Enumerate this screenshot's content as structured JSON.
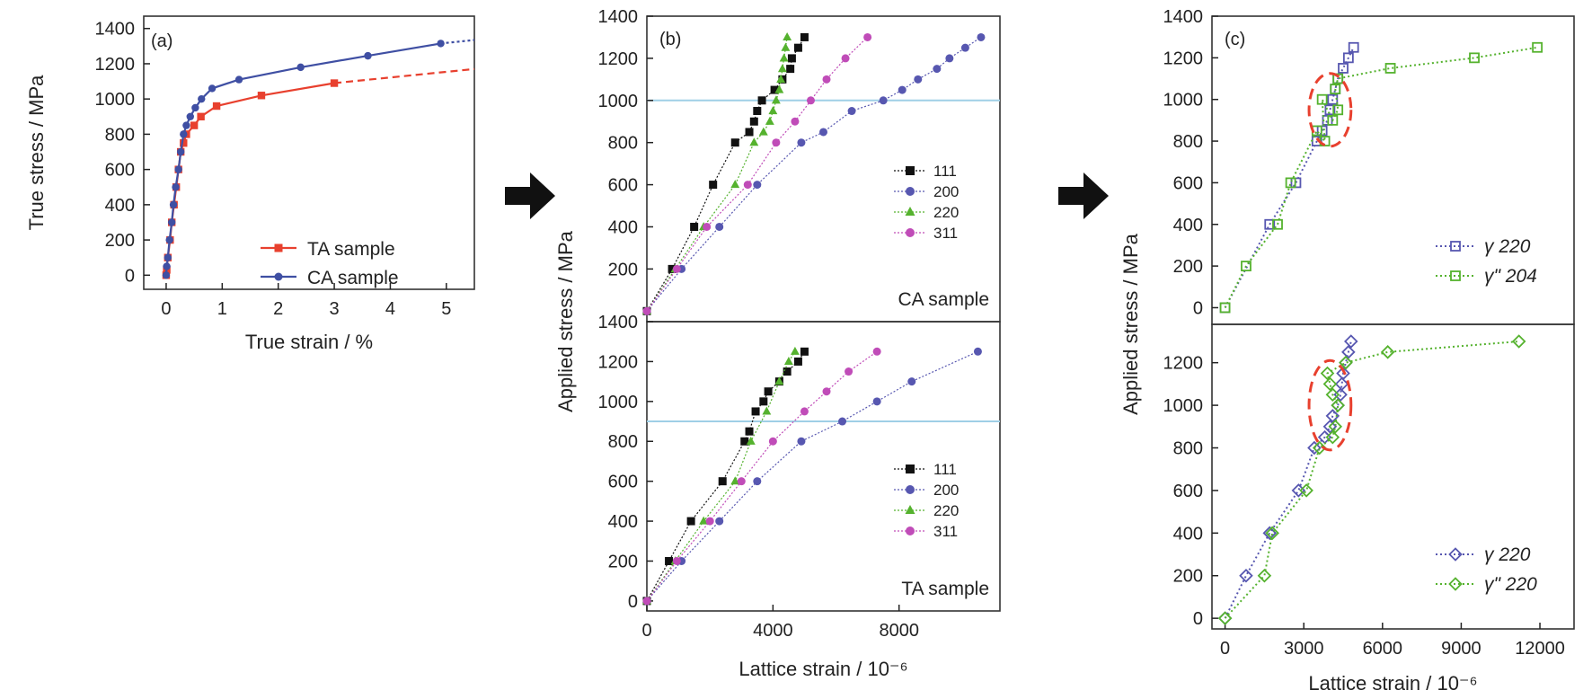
{
  "colors": {
    "black": "#111111",
    "blue": "#5757b0",
    "green": "#55b22e",
    "magenta": "#c04cb8",
    "red": "#e8402e",
    "ca_blue": "#3f4fa3",
    "hline": "#9fcfe6",
    "arrow": "#111111"
  },
  "chart_data": [
    {
      "id": "a",
      "type": "line",
      "panel_label": "(a)",
      "xlabel": "True strain / %",
      "ylabel": "True stress / MPa",
      "xlim": [
        -0.4,
        5.5
      ],
      "ylim": [
        -80,
        1470
      ],
      "xticks": [
        "0",
        "1",
        "2",
        "3",
        "4",
        "5"
      ],
      "yticks": [
        "0",
        "200",
        "400",
        "600",
        "800",
        "1000",
        "1200",
        "1400"
      ],
      "legend_position": "bottom-right",
      "series": [
        {
          "name": "TA sample",
          "color_key": "red",
          "marker": "square",
          "points": [
            [
              0,
              0
            ],
            [
              0.01,
              30
            ],
            [
              0.03,
              100
            ],
            [
              0.07,
              200
            ],
            [
              0.1,
              300
            ],
            [
              0.14,
              400
            ],
            [
              0.18,
              500
            ],
            [
              0.22,
              600
            ],
            [
              0.26,
              700
            ],
            [
              0.31,
              750
            ],
            [
              0.36,
              800
            ],
            [
              0.5,
              850
            ],
            [
              0.62,
              900
            ],
            [
              0.9,
              960
            ],
            [
              1.7,
              1020
            ],
            [
              3.0,
              1090
            ]
          ],
          "extrapolation": [
            [
              3.0,
              1090
            ],
            [
              5.5,
              1170
            ]
          ]
        },
        {
          "name": "CA sample",
          "color_key": "ca_blue",
          "marker": "circle",
          "points": [
            [
              0,
              0
            ],
            [
              0.01,
              50
            ],
            [
              0.03,
              100
            ],
            [
              0.06,
              200
            ],
            [
              0.1,
              300
            ],
            [
              0.13,
              400
            ],
            [
              0.17,
              500
            ],
            [
              0.22,
              600
            ],
            [
              0.26,
              700
            ],
            [
              0.31,
              800
            ],
            [
              0.36,
              850
            ],
            [
              0.43,
              900
            ],
            [
              0.52,
              950
            ],
            [
              0.63,
              1000
            ],
            [
              0.82,
              1060
            ],
            [
              1.3,
              1110
            ],
            [
              2.4,
              1180
            ],
            [
              3.6,
              1245
            ],
            [
              4.9,
              1315
            ]
          ],
          "extrapolation": [
            [
              4.9,
              1315
            ],
            [
              5.5,
              1335
            ]
          ]
        }
      ]
    },
    {
      "id": "b_top",
      "type": "line",
      "panel_label": "(b)",
      "sample_label": "CA sample",
      "xlim": [
        0,
        11200
      ],
      "ylim": [
        -50,
        1400
      ],
      "yticks": [
        "200",
        "400",
        "600",
        "800",
        "1000",
        "1200",
        "1400"
      ],
      "hline": 1000,
      "legend_position": "right",
      "series": [
        {
          "name": "111",
          "color_key": "black",
          "marker": "square",
          "points": [
            [
              0,
              0
            ],
            [
              800,
              200
            ],
            [
              1500,
              400
            ],
            [
              2100,
              600
            ],
            [
              2800,
              800
            ],
            [
              3250,
              850
            ],
            [
              3400,
              900
            ],
            [
              3500,
              950
            ],
            [
              3650,
              1000
            ],
            [
              4050,
              1050
            ],
            [
              4300,
              1100
            ],
            [
              4550,
              1150
            ],
            [
              4600,
              1200
            ],
            [
              4800,
              1250
            ],
            [
              5000,
              1300
            ]
          ]
        },
        {
          "name": "200",
          "color_key": "blue",
          "marker": "circle",
          "points": [
            [
              0,
              0
            ],
            [
              1100,
              200
            ],
            [
              2300,
              400
            ],
            [
              3500,
              600
            ],
            [
              4900,
              800
            ],
            [
              5600,
              850
            ],
            [
              6500,
              950
            ],
            [
              7500,
              1000
            ],
            [
              8100,
              1050
            ],
            [
              8600,
              1100
            ],
            [
              9200,
              1150
            ],
            [
              9600,
              1200
            ],
            [
              10100,
              1250
            ],
            [
              10600,
              1300
            ]
          ]
        },
        {
          "name": "220",
          "color_key": "green",
          "marker": "triangle",
          "points": [
            [
              0,
              0
            ],
            [
              900,
              200
            ],
            [
              1800,
              400
            ],
            [
              2800,
              600
            ],
            [
              3400,
              800
            ],
            [
              3700,
              850
            ],
            [
              3900,
              900
            ],
            [
              4000,
              950
            ],
            [
              4100,
              1000
            ],
            [
              4200,
              1050
            ],
            [
              4250,
              1100
            ],
            [
              4300,
              1150
            ],
            [
              4350,
              1200
            ],
            [
              4400,
              1250
            ],
            [
              4450,
              1300
            ]
          ]
        },
        {
          "name": "311",
          "color_key": "magenta",
          "marker": "circle",
          "points": [
            [
              0,
              0
            ],
            [
              950,
              200
            ],
            [
              1900,
              400
            ],
            [
              3200,
              600
            ],
            [
              4100,
              800
            ],
            [
              4700,
              900
            ],
            [
              5200,
              1000
            ],
            [
              5700,
              1100
            ],
            [
              6300,
              1200
            ],
            [
              7000,
              1300
            ]
          ]
        }
      ]
    },
    {
      "id": "b_bottom",
      "type": "line",
      "sample_label": "TA sample",
      "xlabel": "Lattice strain / 10⁻⁶",
      "ylabel": "Applied stress / MPa",
      "xlim": [
        0,
        11200
      ],
      "ylim": [
        -50,
        1400
      ],
      "xticks": [
        "0",
        "4000",
        "8000"
      ],
      "yticks": [
        "0",
        "200",
        "400",
        "600",
        "800",
        "1000",
        "1200",
        "1400"
      ],
      "hline": 900,
      "legend_position": "right",
      "series": [
        {
          "name": "111",
          "color_key": "black",
          "marker": "square",
          "points": [
            [
              0,
              0
            ],
            [
              700,
              200
            ],
            [
              1400,
              400
            ],
            [
              2400,
              600
            ],
            [
              3100,
              800
            ],
            [
              3250,
              850
            ],
            [
              3450,
              950
            ],
            [
              3700,
              1000
            ],
            [
              3850,
              1050
            ],
            [
              4200,
              1100
            ],
            [
              4450,
              1150
            ],
            [
              4800,
              1200
            ],
            [
              5000,
              1250
            ]
          ]
        },
        {
          "name": "200",
          "color_key": "blue",
          "marker": "circle",
          "points": [
            [
              0,
              0
            ],
            [
              1100,
              200
            ],
            [
              2300,
              400
            ],
            [
              3500,
              600
            ],
            [
              4900,
              800
            ],
            [
              6200,
              900
            ],
            [
              7300,
              1000
            ],
            [
              8400,
              1100
            ],
            [
              10500,
              1250
            ]
          ]
        },
        {
          "name": "220",
          "color_key": "green",
          "marker": "triangle",
          "points": [
            [
              0,
              0
            ],
            [
              900,
              200
            ],
            [
              1800,
              400
            ],
            [
              2800,
              600
            ],
            [
              3300,
              800
            ],
            [
              3800,
              950
            ],
            [
              4200,
              1100
            ],
            [
              4500,
              1200
            ],
            [
              4700,
              1250
            ]
          ]
        },
        {
          "name": "311",
          "color_key": "magenta",
          "marker": "circle",
          "points": [
            [
              0,
              0
            ],
            [
              950,
              200
            ],
            [
              2000,
              400
            ],
            [
              3000,
              600
            ],
            [
              4000,
              800
            ],
            [
              5000,
              950
            ],
            [
              5700,
              1050
            ],
            [
              6400,
              1150
            ],
            [
              7300,
              1250
            ]
          ]
        }
      ]
    },
    {
      "id": "c_top",
      "type": "line",
      "panel_label": "(c)",
      "xlim": [
        -500,
        13300
      ],
      "ylim": [
        -80,
        1400
      ],
      "yticks": [
        "0",
        "200",
        "400",
        "600",
        "800",
        "1000",
        "1200",
        "1400"
      ],
      "highlight_ellipse": {
        "x": 4000,
        "y": 950,
        "rx": 800,
        "ry": 175
      },
      "legend_position": "bottom-right",
      "series": [
        {
          "name": "γ 220",
          "color_key": "blue",
          "marker": "open-square",
          "points": [
            [
              0,
              0
            ],
            [
              1700,
              400
            ],
            [
              2700,
              600
            ],
            [
              3500,
              800
            ],
            [
              3700,
              850
            ],
            [
              3900,
              900
            ],
            [
              4000,
              950
            ],
            [
              4100,
              1000
            ],
            [
              4200,
              1050
            ],
            [
              4300,
              1100
            ],
            [
              4500,
              1150
            ],
            [
              4700,
              1200
            ],
            [
              4900,
              1250
            ]
          ]
        },
        {
          "name": "γʺ 204",
          "color_key": "green",
          "marker": "open-square",
          "points": [
            [
              0,
              0
            ],
            [
              800,
              200
            ],
            [
              2000,
              400
            ],
            [
              2500,
              600
            ],
            [
              3500,
              850
            ],
            [
              3800,
              800
            ],
            [
              3700,
              1000
            ],
            [
              4100,
              900
            ],
            [
              4300,
              950
            ],
            [
              4200,
              1050
            ],
            [
              4300,
              1100
            ],
            [
              6300,
              1150
            ],
            [
              9500,
              1200
            ],
            [
              11900,
              1250
            ]
          ]
        }
      ]
    },
    {
      "id": "c_bottom",
      "type": "line",
      "xlabel": "Lattice strain / 10⁻⁶",
      "ylabel": "Applied stress / MPa",
      "xlim": [
        -500,
        13300
      ],
      "ylim": [
        -50,
        1380
      ],
      "xticks": [
        "0",
        "3000",
        "6000",
        "9000",
        "12000"
      ],
      "yticks": [
        "0",
        "200",
        "400",
        "600",
        "800",
        "1000",
        "1200"
      ],
      "highlight_ellipse": {
        "x": 4000,
        "y": 1000,
        "rx": 800,
        "ry": 210
      },
      "legend_position": "bottom-right",
      "series": [
        {
          "name": "γ 220",
          "color_key": "blue",
          "marker": "open-diamond",
          "points": [
            [
              0,
              0
            ],
            [
              800,
              200
            ],
            [
              1700,
              400
            ],
            [
              2800,
              600
            ],
            [
              3400,
              800
            ],
            [
              3800,
              850
            ],
            [
              4000,
              900
            ],
            [
              4100,
              950
            ],
            [
              4300,
              1000
            ],
            [
              4400,
              1050
            ],
            [
              4450,
              1100
            ],
            [
              4500,
              1150
            ],
            [
              4600,
              1200
            ],
            [
              4700,
              1250
            ],
            [
              4800,
              1300
            ]
          ]
        },
        {
          "name": "γʺ 220",
          "color_key": "green",
          "marker": "open-diamond",
          "points": [
            [
              0,
              0
            ],
            [
              1500,
              200
            ],
            [
              1800,
              400
            ],
            [
              3100,
              600
            ],
            [
              3600,
              800
            ],
            [
              4100,
              850
            ],
            [
              4200,
              900
            ],
            [
              4300,
              1000
            ],
            [
              4100,
              1050
            ],
            [
              4000,
              1100
            ],
            [
              3900,
              1150
            ],
            [
              4600,
              1200
            ],
            [
              6200,
              1250
            ],
            [
              11200,
              1300
            ]
          ]
        }
      ]
    }
  ]
}
